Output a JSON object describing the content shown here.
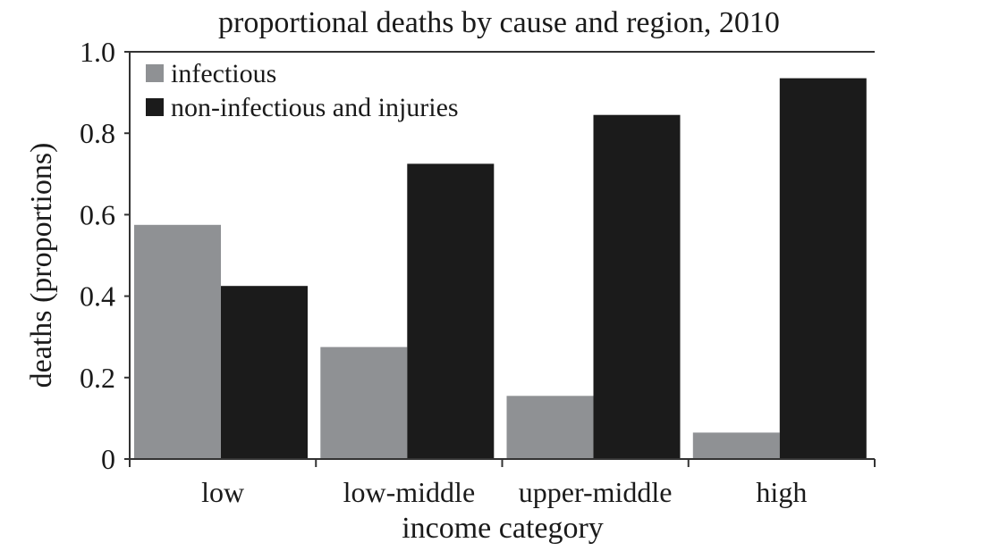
{
  "chart_data": {
    "type": "bar",
    "title": "proportional deaths by cause and region, 2010",
    "xlabel": "income category",
    "ylabel": "deaths (proportions)",
    "categories": [
      "low",
      "low-middle",
      "upper-middle",
      "high"
    ],
    "series": [
      {
        "name": "infectious",
        "color": "#8f9194",
        "values": [
          0.575,
          0.275,
          0.155,
          0.065
        ]
      },
      {
        "name": "non-infectious and injuries",
        "color": "#1b1b1b",
        "values": [
          0.425,
          0.725,
          0.845,
          0.935
        ]
      }
    ],
    "ylim": [
      0,
      1.0
    ],
    "yticks": [
      "0",
      "0.2",
      "0.4",
      "0.6",
      "0.8",
      "1.0"
    ],
    "grid": false,
    "legend_position": "top-left"
  }
}
